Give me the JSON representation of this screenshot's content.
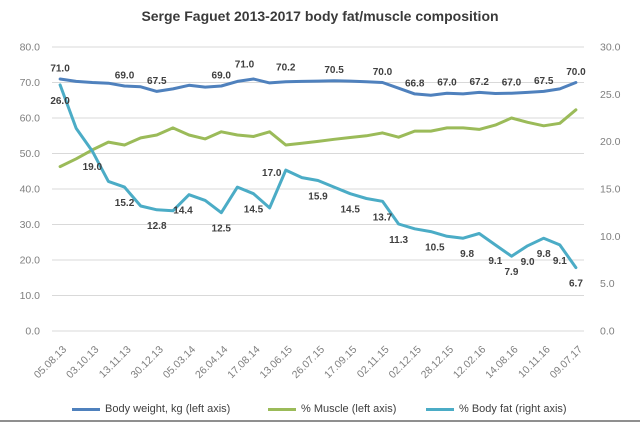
{
  "chart_data": {
    "type": "line",
    "title": "Serge Faguet 2013-2017 body fat/muscle composition",
    "n_points": 33,
    "grid": true,
    "legend_position": "bottom",
    "x_tick_labels": [
      "05.08.13",
      "03.10.13",
      "13.11.13",
      "30.12.13",
      "05.03.14",
      "26.04.14",
      "17.08.14",
      "13.06.15",
      "26.07.15",
      "17.09.15",
      "02.11.15",
      "02.12.15",
      "28.12.15",
      "12.02.16",
      "14.08.16",
      "10.11.16",
      "09.07.17"
    ],
    "x_tick_indices": [
      0,
      2,
      4,
      6,
      8,
      10,
      12,
      14,
      16,
      18,
      20,
      22,
      24,
      26,
      28,
      30,
      32
    ],
    "left_axis": {
      "min": 0,
      "max": 80,
      "step": 10,
      "tick_labels": [
        "80.0",
        "70.0",
        "60.0",
        "50.0",
        "40.0",
        "30.0",
        "20.0",
        "10.0",
        "0.0"
      ]
    },
    "right_axis": {
      "min": 0,
      "max": 30,
      "step": 5,
      "tick_labels": [
        "30.0",
        "25.0",
        "20.0",
        "15.0",
        "10.0",
        "5.0",
        "0.0"
      ]
    },
    "colors": {
      "grid": "#d9d9d9",
      "axis_text": "#7f7f7f",
      "label_text": "#3f3f3f"
    },
    "series": [
      {
        "name": "Body weight, kg (left axis)",
        "slug": "body-weight",
        "axis": "left",
        "color": "#4F81BD",
        "label_position": "above",
        "values": [
          71.0,
          70.3,
          70.0,
          69.8,
          69.0,
          68.8,
          67.5,
          68.2,
          69.2,
          68.7,
          69.0,
          70.3,
          71.0,
          69.9,
          70.2,
          70.3,
          70.4,
          70.5,
          70.4,
          70.2,
          70.0,
          68.4,
          66.8,
          66.4,
          67.0,
          66.8,
          67.2,
          66.9,
          67.0,
          67.2,
          67.5,
          68.2,
          70.0
        ],
        "labels": [
          {
            "i": 0,
            "t": "71.0"
          },
          {
            "i": 4,
            "t": "69.0"
          },
          {
            "i": 6,
            "t": "67.5"
          },
          {
            "i": 10,
            "t": "69.0"
          },
          {
            "i": 12,
            "t": "71.0",
            "dx": -9,
            "dy": -4
          },
          {
            "i": 14,
            "t": "70.2",
            "dy": -4
          },
          {
            "i": 17,
            "t": "70.5"
          },
          {
            "i": 20,
            "t": "70.0"
          },
          {
            "i": 22,
            "t": "66.8"
          },
          {
            "i": 24,
            "t": "67.0"
          },
          {
            "i": 26,
            "t": "67.2"
          },
          {
            "i": 28,
            "t": "67.0"
          },
          {
            "i": 30,
            "t": "67.5"
          },
          {
            "i": 32,
            "t": "70.0"
          }
        ]
      },
      {
        "name": "% Muscle (left axis)",
        "slug": "muscle",
        "axis": "left",
        "color": "#9BBB59",
        "label_position": "above",
        "values": [
          46.3,
          48.5,
          51.0,
          53.2,
          52.4,
          54.4,
          55.2,
          57.2,
          55.2,
          54.1,
          56.1,
          55.2,
          54.8,
          56.1,
          52.4,
          52.9,
          53.4,
          54.0,
          54.5,
          55.0,
          55.8,
          54.6,
          56.3,
          56.3,
          57.2,
          57.2,
          56.8,
          58.0,
          60.0,
          58.8,
          57.8,
          58.5,
          62.3
        ],
        "labels": []
      },
      {
        "name": "% Body fat (right axis)",
        "slug": "body-fat",
        "axis": "right",
        "color": "#4BACC6",
        "label_position": "below",
        "values": [
          26.0,
          21.4,
          19.0,
          15.8,
          15.2,
          13.2,
          12.8,
          12.7,
          14.4,
          13.8,
          12.5,
          15.2,
          14.5,
          13.0,
          17.0,
          16.2,
          15.9,
          15.2,
          14.5,
          14.0,
          13.7,
          11.3,
          10.8,
          10.5,
          10.0,
          9.8,
          10.3,
          9.1,
          7.9,
          9.0,
          9.8,
          9.1,
          6.7
        ],
        "labels": [
          {
            "i": 0,
            "t": "26.0"
          },
          {
            "i": 2,
            "t": "19.0"
          },
          {
            "i": 4,
            "t": "15.2"
          },
          {
            "i": 6,
            "t": "12.8"
          },
          {
            "i": 8,
            "t": "14.4",
            "dx": -6
          },
          {
            "i": 10,
            "t": "12.5"
          },
          {
            "i": 12,
            "t": "14.5"
          },
          {
            "i": 14,
            "t": "17.0",
            "dx": -14,
            "dy": -13
          },
          {
            "i": 16,
            "t": "15.9"
          },
          {
            "i": 18,
            "t": "14.5"
          },
          {
            "i": 20,
            "t": "13.7"
          },
          {
            "i": 21,
            "t": "11.3"
          },
          {
            "i": 23,
            "t": "10.5",
            "dx": 4
          },
          {
            "i": 25,
            "t": "9.8",
            "dx": 4
          },
          {
            "i": 27,
            "t": "9.1"
          },
          {
            "i": 28,
            "t": "7.9"
          },
          {
            "i": 29,
            "t": "9.0"
          },
          {
            "i": 30,
            "t": "9.8"
          },
          {
            "i": 31,
            "t": "9.1"
          },
          {
            "i": 32,
            "t": "6.7"
          }
        ]
      }
    ]
  }
}
